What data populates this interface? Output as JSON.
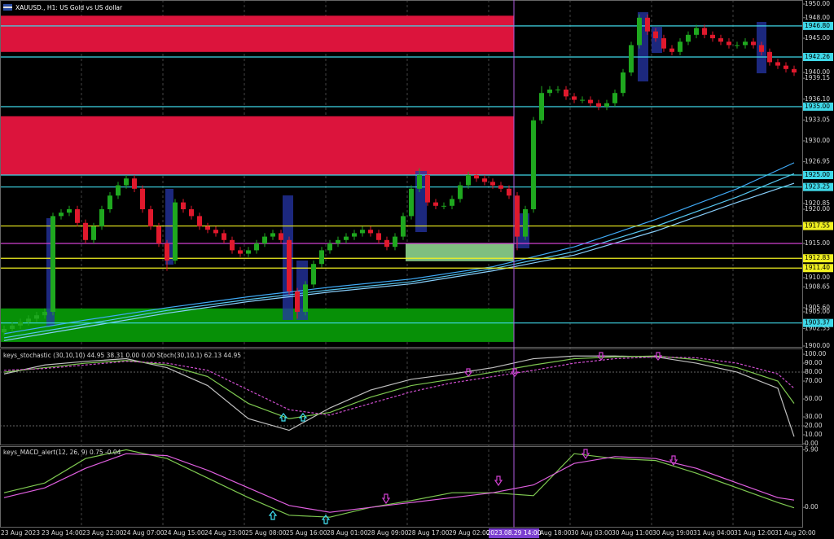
{
  "header": {
    "title": "XAUUSD., H1: US Gold vs US dollar"
  },
  "main": {
    "ylim": [
      1900,
      1950
    ],
    "up_color": "#1fa81f",
    "down_color": "#e0192d",
    "candles": [
      [
        1902,
        1903,
        1901.5,
        1902.5
      ],
      [
        1902.5,
        1903.5,
        1902,
        1903
      ],
      [
        1903,
        1904,
        1902.5,
        1903.5
      ],
      [
        1903.5,
        1904.5,
        1903,
        1904
      ],
      [
        1904,
        1905,
        1903.5,
        1904.5
      ],
      [
        1904.5,
        1905.5,
        1904,
        1905
      ],
      [
        1905,
        1919.5,
        1904.5,
        1919
      ],
      [
        1919,
        1920,
        1918.5,
        1919.5
      ],
      [
        1919.5,
        1920.5,
        1919,
        1920
      ],
      [
        1920,
        1920.5,
        1917.5,
        1918
      ],
      [
        1918,
        1918.5,
        1915,
        1915.5
      ],
      [
        1915.5,
        1918,
        1915,
        1917.5
      ],
      [
        1917.5,
        1920.5,
        1917,
        1920
      ],
      [
        1920,
        1922.5,
        1919.5,
        1922
      ],
      [
        1922,
        1924,
        1921.5,
        1923.5
      ],
      [
        1923.5,
        1925,
        1923,
        1924.5
      ],
      [
        1924.5,
        1925,
        1922.5,
        1923
      ],
      [
        1923,
        1923.5,
        1919.5,
        1920
      ],
      [
        1920,
        1920.5,
        1917,
        1917.5
      ],
      [
        1917.5,
        1918,
        1914.5,
        1915
      ],
      [
        1915,
        1915.5,
        1911,
        1912.5
      ],
      [
        1912.5,
        1921.5,
        1912,
        1921
      ],
      [
        1921,
        1921.5,
        1919.5,
        1920
      ],
      [
        1920,
        1920.5,
        1918.5,
        1919
      ],
      [
        1919,
        1919.5,
        1917,
        1917.5
      ],
      [
        1917.5,
        1918,
        1916.5,
        1917
      ],
      [
        1917,
        1917.5,
        1916,
        1916.5
      ],
      [
        1916.5,
        1917,
        1915,
        1915.5
      ],
      [
        1915.5,
        1916,
        1913.5,
        1914
      ],
      [
        1914,
        1914.5,
        1913,
        1913.5
      ],
      [
        1913.5,
        1914.5,
        1913,
        1914
      ],
      [
        1914,
        1915.5,
        1913.5,
        1915
      ],
      [
        1915,
        1916.5,
        1914.5,
        1916
      ],
      [
        1916,
        1917,
        1915.5,
        1916.5
      ],
      [
        1916.5,
        1917,
        1915,
        1915.5
      ],
      [
        1915.5,
        1916,
        1907.5,
        1908
      ],
      [
        1908,
        1908.5,
        1904,
        1905
      ],
      [
        1905,
        1909.5,
        1904.5,
        1909
      ],
      [
        1909,
        1912.5,
        1908.5,
        1912
      ],
      [
        1912,
        1914.5,
        1911.5,
        1914
      ],
      [
        1914,
        1915.5,
        1913.5,
        1915
      ],
      [
        1915,
        1916,
        1914.5,
        1915.5
      ],
      [
        1915.5,
        1916.5,
        1915,
        1916
      ],
      [
        1916,
        1917,
        1915.5,
        1916.5
      ],
      [
        1916.5,
        1917.5,
        1916,
        1917
      ],
      [
        1917,
        1917.5,
        1916,
        1916.5
      ],
      [
        1916.5,
        1917,
        1915,
        1915.5
      ],
      [
        1915.5,
        1916,
        1914,
        1914.5
      ],
      [
        1914.5,
        1916.5,
        1914,
        1916
      ],
      [
        1916,
        1919.5,
        1915.5,
        1919
      ],
      [
        1919,
        1923.5,
        1918.5,
        1923
      ],
      [
        1923,
        1926,
        1922.5,
        1925
      ],
      [
        1925,
        1925.5,
        1920.5,
        1921
      ],
      [
        1921,
        1921.5,
        1920,
        1920.5
      ],
      [
        1920.5,
        1921,
        1920,
        1920.5
      ],
      [
        1920.5,
        1922,
        1920,
        1921.5
      ],
      [
        1921.5,
        1924,
        1921,
        1923.5
      ],
      [
        1923.5,
        1925.5,
        1923,
        1925
      ],
      [
        1925,
        1925.5,
        1924,
        1924.5
      ],
      [
        1924.5,
        1925,
        1923.5,
        1924
      ],
      [
        1924,
        1924.5,
        1923,
        1923.5
      ],
      [
        1923.5,
        1924,
        1922.5,
        1923
      ],
      [
        1923,
        1923.5,
        1921.5,
        1922
      ],
      [
        1922,
        1922.5,
        1914,
        1916
      ],
      [
        1916,
        1920.5,
        1915.5,
        1920
      ],
      [
        1920,
        1933.5,
        1919.5,
        1933
      ],
      [
        1933,
        1938,
        1932.5,
        1937
      ],
      [
        1937,
        1938,
        1936.5,
        1937.5
      ],
      [
        1937.5,
        1938,
        1937,
        1937.5
      ],
      [
        1937.5,
        1938,
        1936,
        1936.5
      ],
      [
        1936.5,
        1937,
        1935.5,
        1936
      ],
      [
        1936,
        1936.5,
        1935.5,
        1936
      ],
      [
        1936,
        1936.5,
        1935,
        1935.5
      ],
      [
        1935.5,
        1936,
        1934.5,
        1935
      ],
      [
        1935,
        1936,
        1934.5,
        1935.5
      ],
      [
        1935.5,
        1937.5,
        1935,
        1937
      ],
      [
        1937,
        1940.5,
        1936.5,
        1940
      ],
      [
        1940,
        1944.5,
        1939.5,
        1944
      ],
      [
        1944,
        1948.5,
        1943.5,
        1948
      ],
      [
        1948,
        1948.5,
        1945.5,
        1946
      ],
      [
        1946,
        1946.5,
        1944.5,
        1945
      ],
      [
        1945,
        1945.5,
        1943,
        1943.5
      ],
      [
        1943.5,
        1944,
        1942.5,
        1943
      ],
      [
        1943,
        1945,
        1942.5,
        1944.5
      ],
      [
        1944.5,
        1946,
        1944,
        1945.5
      ],
      [
        1945.5,
        1947,
        1945,
        1946.5
      ],
      [
        1946.5,
        1947,
        1945,
        1945.5
      ],
      [
        1945.5,
        1946,
        1944.5,
        1945
      ],
      [
        1945,
        1945.5,
        1944,
        1944.5
      ],
      [
        1944.5,
        1945,
        1943.5,
        1944
      ],
      [
        1944,
        1944.5,
        1943.5,
        1944
      ],
      [
        1944,
        1945,
        1943.5,
        1944.5
      ],
      [
        1944.5,
        1945,
        1943.5,
        1944
      ],
      [
        1944,
        1944.5,
        1942.5,
        1943
      ],
      [
        1943,
        1943.5,
        1941,
        1941.5
      ],
      [
        1941.5,
        1942,
        1940.5,
        1941
      ],
      [
        1941,
        1941.5,
        1940,
        1940.5
      ],
      [
        1940.5,
        1941,
        1939.5,
        1940
      ]
    ],
    "zones": [
      {
        "top": 1948.3,
        "bottom": 1943,
        "color": "#dc143c"
      },
      {
        "top": 1933.6,
        "bottom": 1925,
        "color": "#dc143c"
      },
      {
        "top": 1905.5,
        "bottom": 1900.6,
        "color": "#079007"
      },
      {
        "top": 1915,
        "bottom": 1912.4,
        "color": "#7fbf7f"
      }
    ],
    "levels": [
      {
        "value": 1946.8,
        "label": "1946.80",
        "color": "#3fd8e8"
      },
      {
        "value": 1942.26,
        "label": "1942.26",
        "color": "#3fd8e8"
      },
      {
        "value": 1935,
        "label": "1935.00",
        "color": "#3fd8e8"
      },
      {
        "value": 1925,
        "label": "1925.00",
        "color": "#3fd8e8"
      },
      {
        "value": 1923.25,
        "label": "1923.25",
        "color": "#3fd8e8"
      },
      {
        "value": 1917.55,
        "label": "1917.55",
        "color": "#f0f020"
      },
      {
        "value": 1915,
        "color": "#d040d0"
      },
      {
        "value": 1912.83,
        "label": "1912.83",
        "color": "#f0f020"
      },
      {
        "value": 1911.4,
        "label": "1911.40",
        "color": "#f0f020"
      },
      {
        "value": 1903.37,
        "label": "1903.37",
        "color": "#3fd8e8"
      }
    ],
    "yticks": [
      {
        "value": 1950,
        "label": "1950.00"
      },
      {
        "value": 1948,
        "label": "1948.00"
      },
      {
        "value": 1945,
        "label": "1945.00"
      },
      {
        "value": 1940,
        "label": "1940.00"
      },
      {
        "value": 1939.15,
        "label": "1939.15"
      },
      {
        "value": 1936.1,
        "label": "1936.10"
      },
      {
        "value": 1933.05,
        "label": "1933.05"
      },
      {
        "value": 1930,
        "label": "1930.00"
      },
      {
        "value": 1926.95,
        "label": "1926.95"
      },
      {
        "value": 1920.85,
        "label": "1920.85"
      },
      {
        "value": 1920,
        "label": "1920.00"
      },
      {
        "value": 1915,
        "label": "1915.00"
      },
      {
        "value": 1910,
        "label": "1910.00"
      },
      {
        "value": 1908.65,
        "label": "1908.65"
      },
      {
        "value": 1905.6,
        "label": "1905.60"
      },
      {
        "value": 1905,
        "label": "1905.00"
      },
      {
        "value": 1902.55,
        "label": "1902.55"
      },
      {
        "value": 1900,
        "label": "1900.00"
      }
    ],
    "ma": {
      "x": [
        0,
        10,
        20,
        30,
        40,
        50,
        60,
        70,
        80,
        90,
        97
      ],
      "series": [
        {
          "color": "#3fa9f5",
          "values": [
            1901.8,
            1903.8,
            1905.6,
            1907.2,
            1908.6,
            1909.8,
            1911.6,
            1914.5,
            1918.5,
            1923,
            1926.8
          ]
        },
        {
          "color": "#56c6f0",
          "values": [
            1901.2,
            1903.2,
            1905.2,
            1906.8,
            1908.2,
            1909.4,
            1911.3,
            1913.8,
            1917.5,
            1921.8,
            1925.2
          ]
        },
        {
          "color": "#87cefa",
          "values": [
            1900.8,
            1902.8,
            1904.8,
            1906.5,
            1907.9,
            1909.1,
            1911,
            1913.3,
            1916.8,
            1921,
            1923.8
          ]
        }
      ]
    }
  },
  "time_axis": {
    "labels": [
      "23 Aug 2023",
      "23 Aug 14:00",
      "23 Aug 22:00",
      "24 Aug 07:00",
      "24 Aug 15:00",
      "24 Aug 23:00",
      "25 Aug 08:00",
      "25 Aug 16:00",
      "28 Aug 01:00",
      "28 Aug 09:00",
      "28 Aug 17:00",
      "29 Aug 02:00",
      null,
      "29 Aug 18:00",
      "30 Aug 03:00",
      "30 Aug 11:00",
      "30 Aug 19:00",
      "31 Aug 04:00",
      "31 Aug 12:00",
      "31 Aug 20:00"
    ],
    "cursor_label": "2023.08.29 14:00"
  },
  "stochastic": {
    "title": "keys_stochastic (30,10,10) 44.95 38.31 0.00 0.00 Stoch(30,10,1) 62.13 44.95",
    "ylim": [
      -2.7,
      106.4
    ],
    "yticks": [
      {
        "value": 100,
        "label": "100.00"
      },
      {
        "value": 90,
        "label": "90.00"
      },
      {
        "value": 80,
        "label": "80.00"
      },
      {
        "value": 70,
        "label": "70.00"
      },
      {
        "value": 50,
        "label": "50.00"
      },
      {
        "value": 30,
        "label": "30.00"
      },
      {
        "value": 20,
        "label": "20.00"
      },
      {
        "value": 10,
        "label": "10.00"
      },
      {
        "value": 0,
        "label": "0.00"
      }
    ],
    "levels": [
      80,
      20
    ],
    "x": [
      0,
      5,
      10,
      15,
      20,
      25,
      30,
      35,
      40,
      45,
      50,
      55,
      60,
      65,
      70,
      75,
      80,
      85,
      90,
      95,
      97
    ],
    "series": [
      {
        "color": "#c0c0c0",
        "values": [
          78,
          88,
          92,
          95,
          85,
          65,
          28,
          15,
          40,
          60,
          72,
          78,
          85,
          95,
          98,
          98,
          97,
          90,
          80,
          62,
          8
        ]
      },
      {
        "color": "#7ec850",
        "values": [
          80,
          85,
          90,
          93,
          88,
          75,
          45,
          28,
          35,
          52,
          65,
          72,
          80,
          88,
          95,
          97,
          98,
          94,
          85,
          70,
          45
        ]
      },
      {
        "color": "#d14fd1",
        "dashed": true,
        "values": [
          82,
          84,
          88,
          92,
          90,
          82,
          60,
          38,
          32,
          45,
          58,
          68,
          75,
          82,
          90,
          95,
          97,
          96,
          90,
          78,
          62
        ]
      }
    ]
  },
  "macd": {
    "title": "keys_MACD_alert(12, 26, 9) 0.75 -0.04",
    "ylim": [
      -1.9,
      6.1
    ],
    "yticks": [
      {
        "value": 5.9,
        "label": "5.90"
      },
      {
        "value": 0,
        "label": "0.00"
      }
    ],
    "x": [
      0,
      5,
      10,
      15,
      20,
      25,
      30,
      35,
      40,
      45,
      50,
      55,
      60,
      65,
      70,
      75,
      80,
      85,
      90,
      95,
      97
    ],
    "series": [
      {
        "color": "#7ec850",
        "values": [
          1.5,
          2.5,
          5,
          5.9,
          5,
          3,
          1,
          -0.8,
          -1,
          0,
          0.7,
          1.5,
          1.5,
          1.2,
          5.5,
          5,
          4.8,
          3.5,
          2,
          0.5,
          -0.04
        ]
      },
      {
        "color": "#e05fe0",
        "values": [
          1,
          2,
          4,
          5.5,
          5.3,
          3.8,
          2,
          0.2,
          -0.5,
          0,
          0.5,
          1,
          1.5,
          2.3,
          4.5,
          5.2,
          5,
          4,
          2.5,
          1,
          0.75
        ]
      }
    ]
  }
}
